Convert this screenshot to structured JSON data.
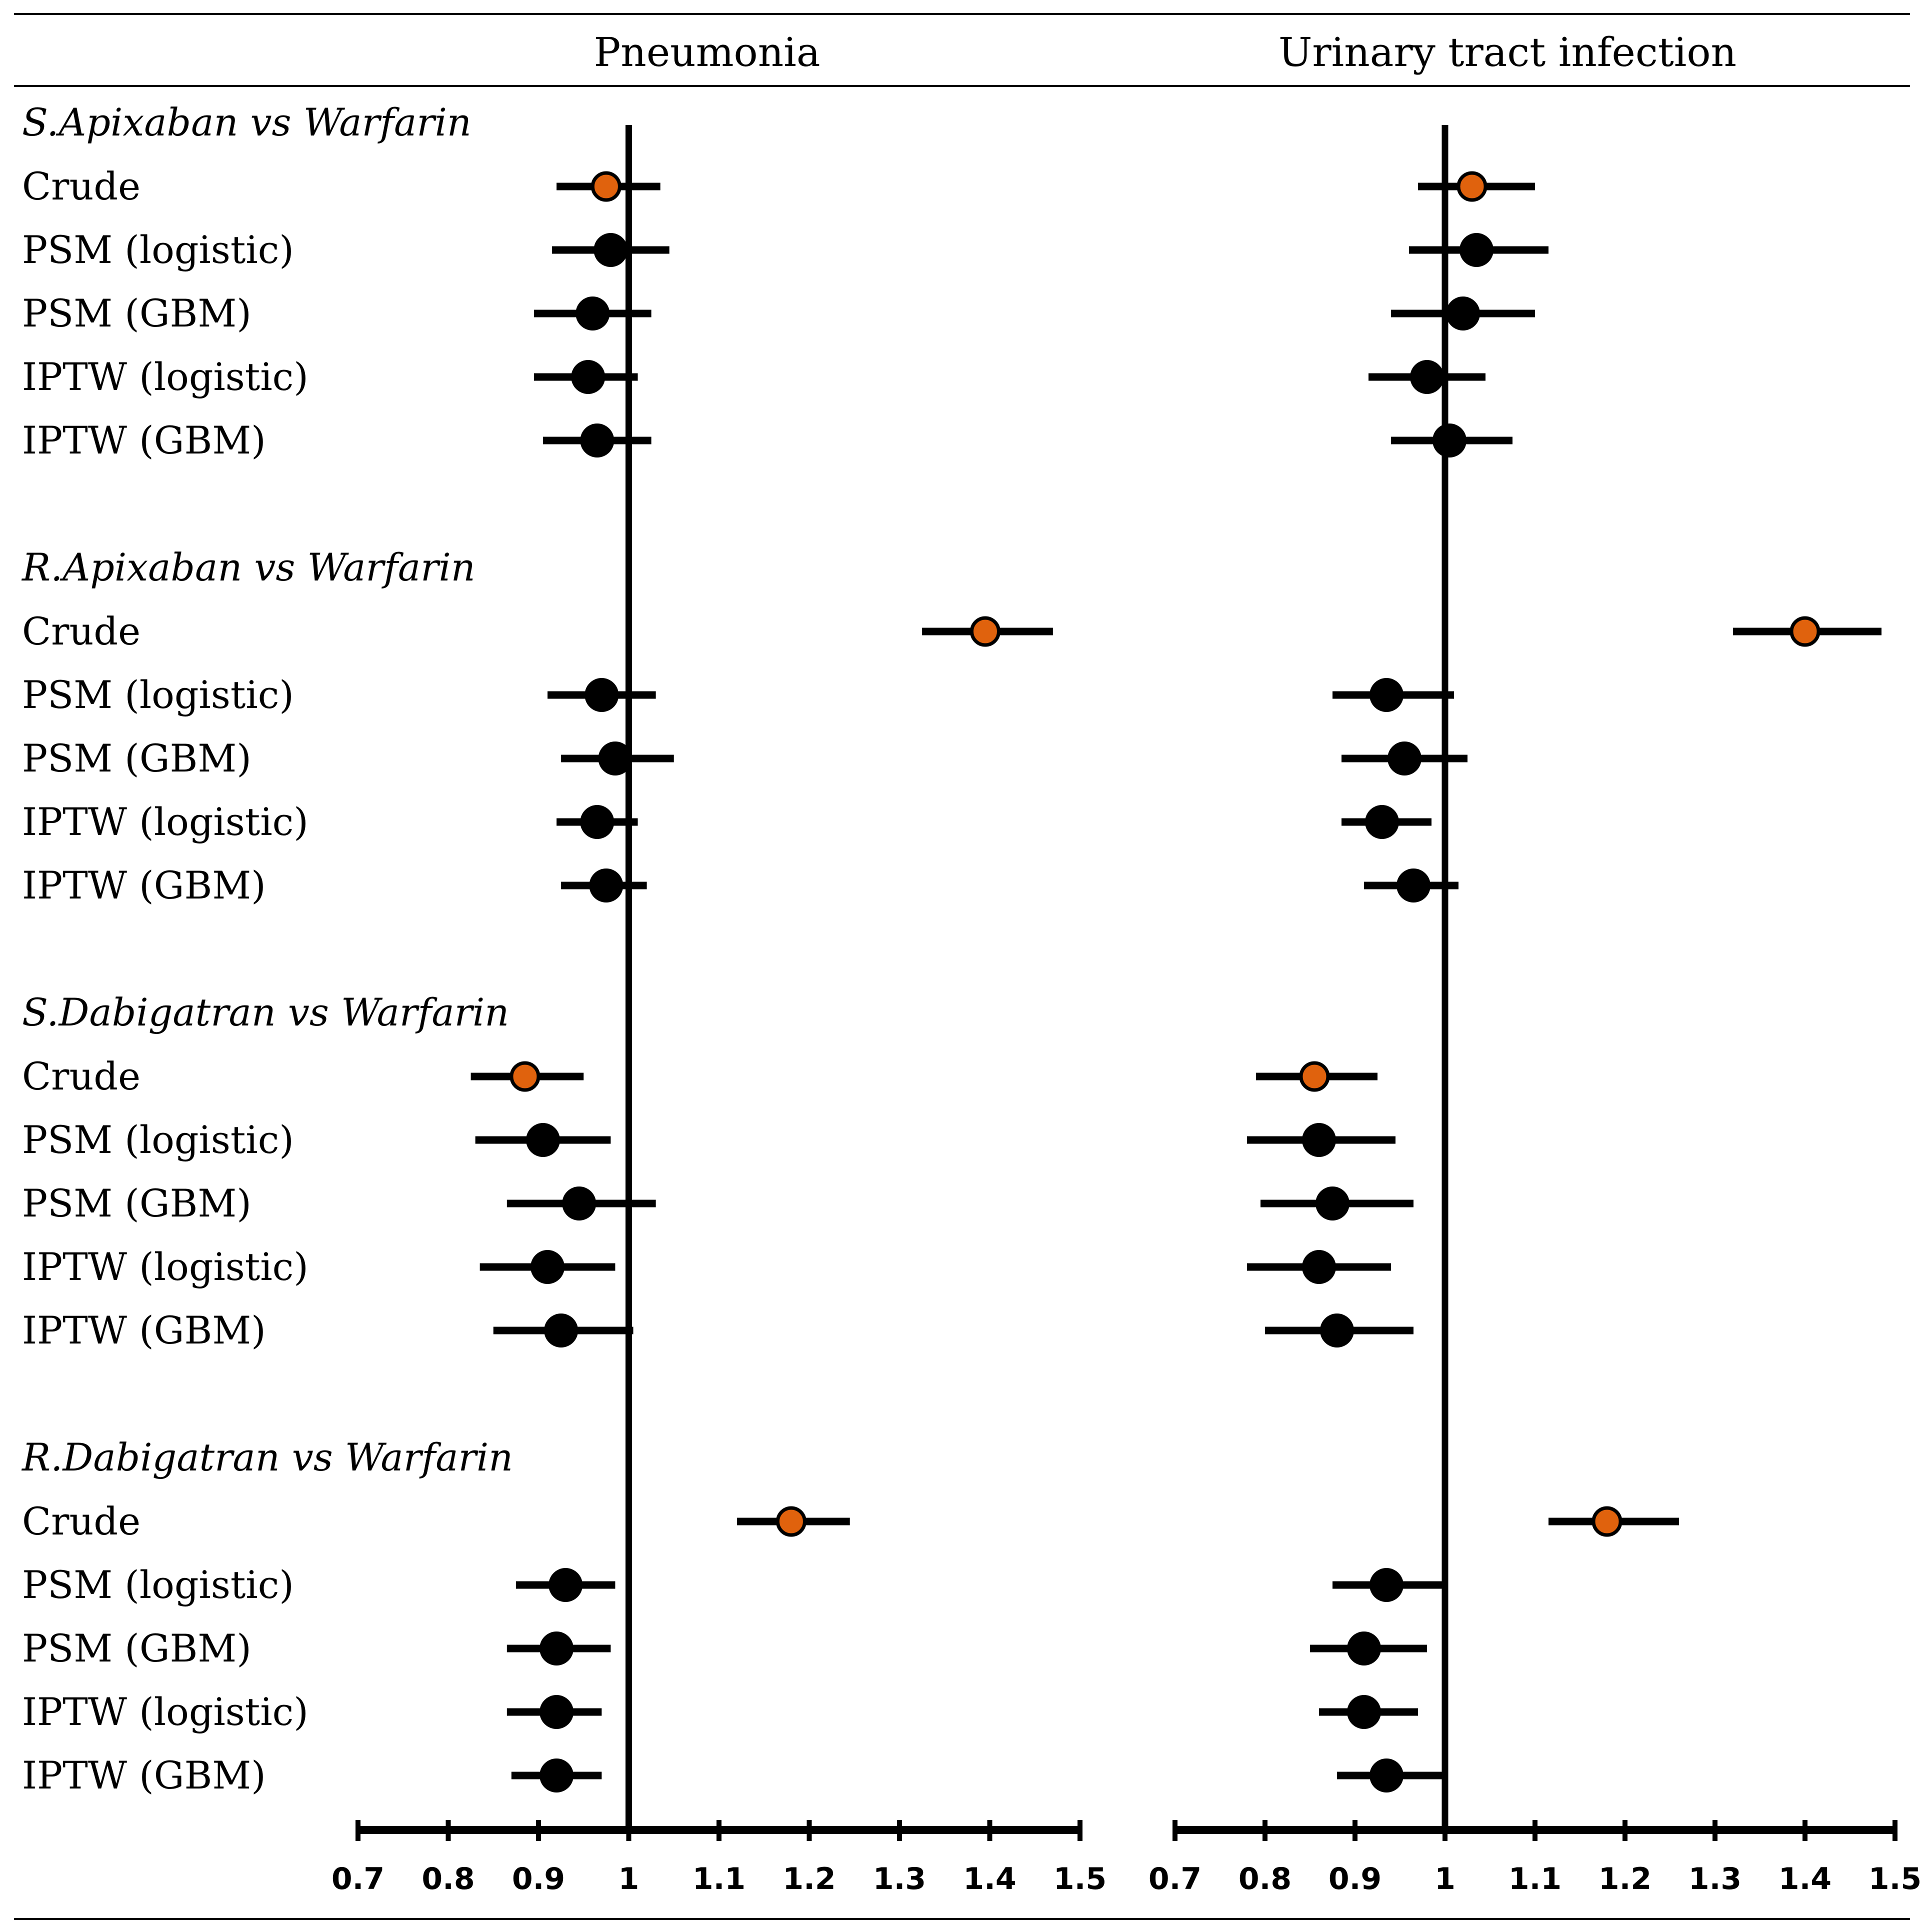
{
  "chart_data": {
    "type": "forest",
    "panels": [
      {
        "title": "Pneumonia"
      },
      {
        "title": "Urinary tract infection"
      }
    ],
    "xaxis": {
      "range": [
        0.7,
        1.5
      ],
      "ticks": [
        0.7,
        0.8,
        0.9,
        1,
        1.1,
        1.2,
        1.3,
        1.4,
        1.5
      ],
      "tick_labels": [
        "0.7",
        "0.8",
        "0.9",
        "1",
        "1.1",
        "1.2",
        "1.3",
        "1.4",
        "1.5"
      ],
      "reference": 1
    },
    "colors": {
      "crude": "#E0620D",
      "adjusted": "#000000"
    },
    "groups": [
      {
        "label": "S.Apixaban vs Warfarin",
        "rows": [
          {
            "label": "Crude",
            "crude": true,
            "estimates": [
              {
                "est": 0.975,
                "lo": 0.92,
                "hi": 1.035
              },
              {
                "est": 1.03,
                "lo": 0.97,
                "hi": 1.1
              }
            ]
          },
          {
            "label": "PSM (logistic)",
            "crude": false,
            "estimates": [
              {
                "est": 0.98,
                "lo": 0.915,
                "hi": 1.045
              },
              {
                "est": 1.035,
                "lo": 0.96,
                "hi": 1.115
              }
            ]
          },
          {
            "label": "PSM (GBM)",
            "crude": false,
            "estimates": [
              {
                "est": 0.96,
                "lo": 0.895,
                "hi": 1.025
              },
              {
                "est": 1.02,
                "lo": 0.94,
                "hi": 1.1
              }
            ]
          },
          {
            "label": "IPTW (logistic)",
            "crude": false,
            "estimates": [
              {
                "est": 0.955,
                "lo": 0.895,
                "hi": 1.01
              },
              {
                "est": 0.98,
                "lo": 0.915,
                "hi": 1.045
              }
            ]
          },
          {
            "label": "IPTW (GBM)",
            "crude": false,
            "estimates": [
              {
                "est": 0.965,
                "lo": 0.905,
                "hi": 1.025
              },
              {
                "est": 1.005,
                "lo": 0.94,
                "hi": 1.075
              }
            ]
          }
        ]
      },
      {
        "label": "R.Apixaban vs Warfarin",
        "rows": [
          {
            "label": "Crude",
            "crude": true,
            "estimates": [
              {
                "est": 1.395,
                "lo": 1.325,
                "hi": 1.47
              },
              {
                "est": 1.4,
                "lo": 1.32,
                "hi": 1.485
              }
            ]
          },
          {
            "label": "PSM (logistic)",
            "crude": false,
            "estimates": [
              {
                "est": 0.97,
                "lo": 0.91,
                "hi": 1.03
              },
              {
                "est": 0.935,
                "lo": 0.875,
                "hi": 1.01
              }
            ]
          },
          {
            "label": "PSM (GBM)",
            "crude": false,
            "estimates": [
              {
                "est": 0.985,
                "lo": 0.925,
                "hi": 1.05
              },
              {
                "est": 0.955,
                "lo": 0.885,
                "hi": 1.025
              }
            ]
          },
          {
            "label": "IPTW (logistic)",
            "crude": false,
            "estimates": [
              {
                "est": 0.965,
                "lo": 0.92,
                "hi": 1.01
              },
              {
                "est": 0.93,
                "lo": 0.885,
                "hi": 0.985
              }
            ]
          },
          {
            "label": "IPTW (GBM)",
            "crude": false,
            "estimates": [
              {
                "est": 0.975,
                "lo": 0.925,
                "hi": 1.02
              },
              {
                "est": 0.965,
                "lo": 0.91,
                "hi": 1.015
              }
            ]
          }
        ]
      },
      {
        "label": "S.Dabigatran vs Warfarin",
        "rows": [
          {
            "label": "Crude",
            "crude": true,
            "estimates": [
              {
                "est": 0.885,
                "lo": 0.825,
                "hi": 0.95
              },
              {
                "est": 0.855,
                "lo": 0.79,
                "hi": 0.925
              }
            ]
          },
          {
            "label": "PSM (logistic)",
            "crude": false,
            "estimates": [
              {
                "est": 0.905,
                "lo": 0.83,
                "hi": 0.98
              },
              {
                "est": 0.86,
                "lo": 0.78,
                "hi": 0.945
              }
            ]
          },
          {
            "label": "PSM (GBM)",
            "crude": false,
            "estimates": [
              {
                "est": 0.945,
                "lo": 0.865,
                "hi": 1.03
              },
              {
                "est": 0.875,
                "lo": 0.795,
                "hi": 0.965
              }
            ]
          },
          {
            "label": "IPTW (logistic)",
            "crude": false,
            "estimates": [
              {
                "est": 0.91,
                "lo": 0.835,
                "hi": 0.985
              },
              {
                "est": 0.86,
                "lo": 0.78,
                "hi": 0.94
              }
            ]
          },
          {
            "label": "IPTW (GBM)",
            "crude": false,
            "estimates": [
              {
                "est": 0.925,
                "lo": 0.85,
                "hi": 1.005
              },
              {
                "est": 0.88,
                "lo": 0.8,
                "hi": 0.965
              }
            ]
          }
        ]
      },
      {
        "label": "R.Dabigatran vs Warfarin",
        "rows": [
          {
            "label": "Crude",
            "crude": true,
            "estimates": [
              {
                "est": 1.18,
                "lo": 1.12,
                "hi": 1.245
              },
              {
                "est": 1.18,
                "lo": 1.115,
                "hi": 1.26
              }
            ]
          },
          {
            "label": "PSM (logistic)",
            "crude": false,
            "estimates": [
              {
                "est": 0.93,
                "lo": 0.875,
                "hi": 0.985
              },
              {
                "est": 0.935,
                "lo": 0.875,
                "hi": 1.0
              }
            ]
          },
          {
            "label": "PSM (GBM)",
            "crude": false,
            "estimates": [
              {
                "est": 0.92,
                "lo": 0.865,
                "hi": 0.98
              },
              {
                "est": 0.91,
                "lo": 0.85,
                "hi": 0.98
              }
            ]
          },
          {
            "label": "IPTW (logistic)",
            "crude": false,
            "estimates": [
              {
                "est": 0.92,
                "lo": 0.865,
                "hi": 0.97
              },
              {
                "est": 0.91,
                "lo": 0.86,
                "hi": 0.97
              }
            ]
          },
          {
            "label": "IPTW (GBM)",
            "crude": false,
            "estimates": [
              {
                "est": 0.92,
                "lo": 0.87,
                "hi": 0.97
              },
              {
                "est": 0.935,
                "lo": 0.88,
                "hi": 1.0
              }
            ]
          }
        ]
      }
    ]
  }
}
